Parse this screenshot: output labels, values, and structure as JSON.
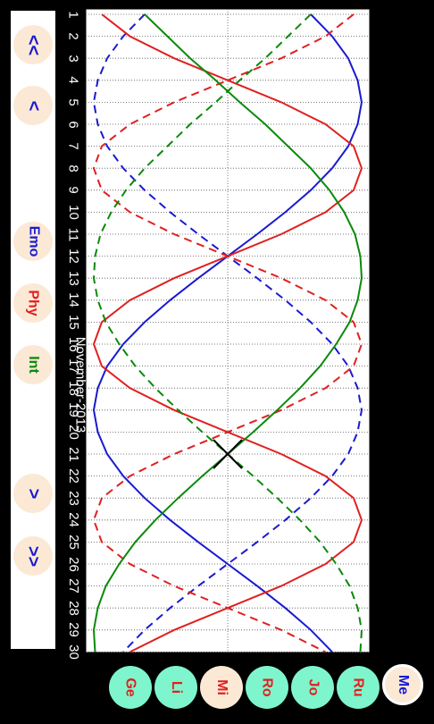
{
  "nav": {
    "fast_back": "<<",
    "back": "<",
    "forward": ">",
    "fast_forward": ">>"
  },
  "cycles": {
    "emo": {
      "label": "Emo",
      "color": "#1a1ad0"
    },
    "phy": {
      "label": "Phy",
      "color": "#e02020"
    },
    "int": {
      "label": "Int",
      "color": "#0a8a0a"
    }
  },
  "month_label": "November-2013",
  "people": [
    {
      "label": "Ge",
      "selected": false
    },
    {
      "label": "Li",
      "selected": false
    },
    {
      "label": "Mi",
      "selected": true
    },
    {
      "label": "Ro",
      "selected": false
    },
    {
      "label": "Jo",
      "selected": false
    },
    {
      "label": "Ru",
      "selected": false
    }
  ],
  "me_button": "Me",
  "chart_data": {
    "type": "line",
    "x": [
      1,
      2,
      3,
      4,
      5,
      6,
      7,
      8,
      9,
      10,
      11,
      12,
      13,
      14,
      15,
      16,
      17,
      18,
      19,
      20,
      21,
      22,
      23,
      24,
      25,
      26,
      27,
      28,
      29,
      30
    ],
    "x_tick_labels": [
      "1",
      "2",
      "3",
      "4",
      "5",
      "6",
      "7",
      "8",
      "9",
      "10",
      "11",
      "12",
      "13",
      "14",
      "15",
      "16",
      "17",
      "18",
      "19",
      "20",
      "21",
      "22",
      "23",
      "24",
      "25",
      "26",
      "27",
      "28",
      "29",
      "30"
    ],
    "cursor_day": 21,
    "ylim": [
      -1,
      1
    ],
    "series": [
      {
        "name": "Emo",
        "color": "#1a1ad0",
        "values": [
          0.62,
          0.78,
          0.9,
          0.97,
          1.0,
          0.97,
          0.9,
          0.78,
          0.62,
          0.43,
          0.22,
          0.0,
          -0.22,
          -0.43,
          -0.62,
          -0.78,
          -0.9,
          -0.97,
          -1.0,
          -0.97,
          -0.9,
          -0.78,
          -0.62,
          -0.43,
          -0.22,
          0.0,
          0.22,
          0.43,
          0.62,
          0.78
        ]
      },
      {
        "name": "Phy",
        "color": "#e02020",
        "values": [
          -0.94,
          -0.73,
          -0.4,
          0.0,
          0.4,
          0.73,
          0.94,
          1.0,
          0.94,
          0.73,
          0.4,
          0.0,
          -0.4,
          -0.73,
          -0.94,
          -1.0,
          -0.94,
          -0.73,
          -0.4,
          0.0,
          0.4,
          0.73,
          0.94,
          1.0,
          0.94,
          0.73,
          0.4,
          0.0,
          -0.4,
          -0.73
        ]
      },
      {
        "name": "Int",
        "color": "#0a8a0a",
        "values": [
          -0.62,
          -0.45,
          -0.28,
          -0.09,
          0.09,
          0.28,
          0.45,
          0.62,
          0.76,
          0.87,
          0.95,
          0.99,
          1.0,
          0.97,
          0.91,
          0.81,
          0.69,
          0.54,
          0.37,
          0.19,
          0.0,
          -0.19,
          -0.37,
          -0.54,
          -0.69,
          -0.81,
          -0.91,
          -0.97,
          -1.0,
          -0.99
        ]
      }
    ]
  }
}
